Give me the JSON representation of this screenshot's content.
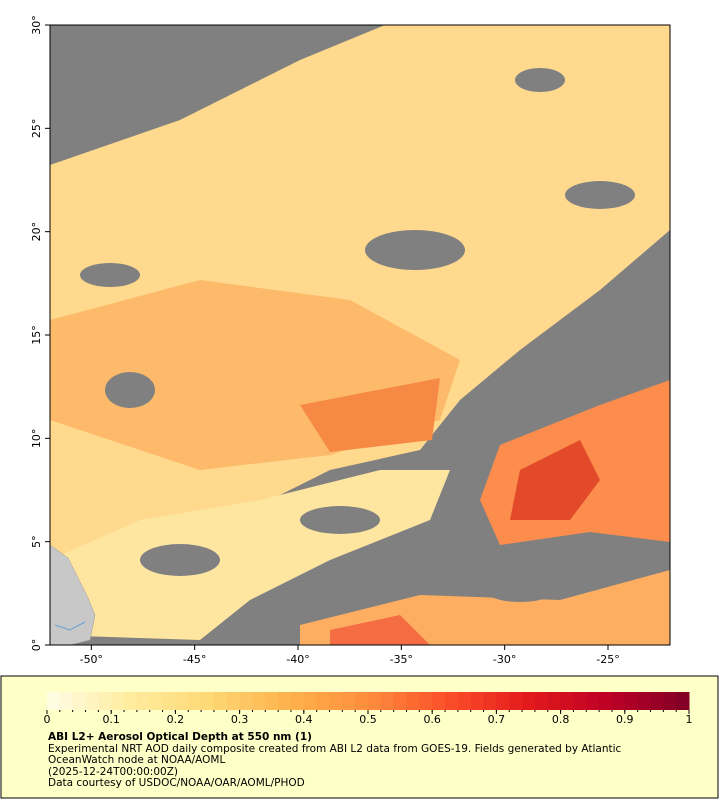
{
  "map": {
    "xlim": [
      -52,
      -22
    ],
    "ylim": [
      0,
      30
    ],
    "xticks": [
      {
        "value": -50,
        "label": "-50°"
      },
      {
        "value": -45,
        "label": "-45°"
      },
      {
        "value": -40,
        "label": "-40°"
      },
      {
        "value": -35,
        "label": "-35°"
      },
      {
        "value": -30,
        "label": "-30°"
      },
      {
        "value": -25,
        "label": "-25°"
      }
    ],
    "yticks": [
      {
        "value": 0,
        "label": "0°"
      },
      {
        "value": 5,
        "label": "5°"
      },
      {
        "value": 10,
        "label": "10°"
      },
      {
        "value": 15,
        "label": "15°"
      },
      {
        "value": 20,
        "label": "20°"
      },
      {
        "value": 25,
        "label": "25°"
      },
      {
        "value": 30,
        "label": "30°"
      }
    ]
  },
  "colorbar": {
    "range": [
      0,
      1
    ],
    "ticks": [
      0,
      0.1,
      0.2,
      0.3,
      0.4,
      0.5,
      0.6,
      0.7,
      0.8,
      0.9,
      1
    ],
    "colors": [
      "#fffde8",
      "#ffeda0",
      "#fed976",
      "#feb24c",
      "#fd8d3c",
      "#fc4e2a",
      "#e31a1c",
      "#bd0026",
      "#800026"
    ]
  },
  "caption": {
    "title": "ABI L2+ Aerosol Optical Depth at 550 nm (1)",
    "description": "Experimental NRT AOD daily composite created from ABI L2 data from GOES-19. Fields generated by Atlantic OceanWatch node at NOAA/AOML",
    "time": "(2025-12-24T00:00:00Z)",
    "credit": "Data courtesy of USDOC/NOAA/OAR/AOML/PHOD"
  }
}
